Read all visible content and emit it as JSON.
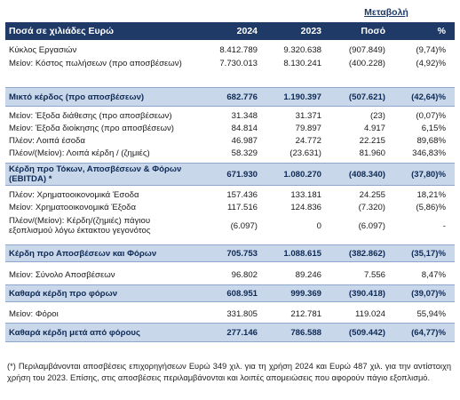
{
  "change_title": "Μεταβολή",
  "header": {
    "label": "Ποσά σε χιλιάδες Ευρώ",
    "y2024": "2024",
    "y2023": "2023",
    "amount": "Ποσό",
    "pct": "%"
  },
  "rows": [
    {
      "label": "Κύκλος Εργασιών",
      "v2024": "8.412.789",
      "v2023": "9.320.638",
      "amount": "(907.849)",
      "pct": "(9,74)%"
    },
    {
      "label": "Μείον: Κόστος πωλήσεων (προ αποσβέσεων)",
      "v2024": "7.730.013",
      "v2023": "8.130.241",
      "amount": "(400.228)",
      "pct": "(4,92)%"
    },
    {
      "label": "Μικτό κέρδος (προ αποσβέσεων)",
      "v2024": "682.776",
      "v2023": "1.190.397",
      "amount": "(507.621)",
      "pct": "(42,64)%"
    },
    {
      "label": "Μείον: Έξοδα διάθεσης (προ αποσβέσεων)",
      "v2024": "31.348",
      "v2023": "31.371",
      "amount": "(23)",
      "pct": "(0,07)%"
    },
    {
      "label": "Μείον: Έξοδα διοίκησης (προ αποσβέσεων)",
      "v2024": "84.814",
      "v2023": "79.897",
      "amount": "4.917",
      "pct": "6,15%"
    },
    {
      "label": "Πλέον: Λοιπά έσοδα",
      "v2024": "46.987",
      "v2023": "24.772",
      "amount": "22.215",
      "pct": "89,68%"
    },
    {
      "label": "Πλέον/(Μείον): Λοιπά κέρδη / (ζημιές)",
      "v2024": "58.329",
      "v2023": "(23.631)",
      "amount": "81.960",
      "pct": "346,83%"
    },
    {
      "label": "Κέρδη προ Τόκων, Αποσβέσεων & Φόρων (EBITDA) *",
      "v2024": "671.930",
      "v2023": "1.080.270",
      "amount": "(408.340)",
      "pct": "(37,80)%"
    },
    {
      "label": "Πλέον: Χρηματοοικονομικά Έσοδα",
      "v2024": "157.436",
      "v2023": "133.181",
      "amount": "24.255",
      "pct": "18,21%"
    },
    {
      "label": "Μείον: Χρηματοοικονομικά Έξοδα",
      "v2024": "117.516",
      "v2023": "124.836",
      "amount": "(7.320)",
      "pct": "(5,86)%"
    },
    {
      "label": "Πλέον/(Μείον): Κέρδη/(ζημιές) πάγιου εξοπλισμού λόγω έκτακτου γεγονότος",
      "v2024": "(6.097)",
      "v2023": "0",
      "amount": "(6.097)",
      "pct": "-"
    },
    {
      "label": "Κέρδη προ Αποσβέσεων και Φόρων",
      "v2024": "705.753",
      "v2023": "1.088.615",
      "amount": "(382.862)",
      "pct": "(35,17)%"
    },
    {
      "label": "Μείον: Σύνολο Αποσβέσεων",
      "v2024": "96.802",
      "v2023": "89.246",
      "amount": "7.556",
      "pct": "8,47%"
    },
    {
      "label": "Καθαρά κέρδη προ φόρων",
      "v2024": "608.951",
      "v2023": "999.369",
      "amount": "(390.418)",
      "pct": "(39,07)%"
    },
    {
      "label": "Μείον: Φόροι",
      "v2024": "331.805",
      "v2023": "212.781",
      "amount": "119.024",
      "pct": "55,94%"
    },
    {
      "label": "Καθαρά κέρδη μετά από φόρους",
      "v2024": "277.146",
      "v2023": "786.588",
      "amount": "(509.442)",
      "pct": "(64,77)%"
    }
  ],
  "footnote": "(*) Περιλαμβάνονται αποσβέσεις επιχορηγήσεων Ευρώ 349 χιλ. για τη χρήση 2024 και Ευρώ 487 χιλ. για την αντίστοιχη χρήση του 2023. Επίσης, στις αποσβέσεις περιλαμβάνονται και λοιπές απομειώσεις που αφορούν πάγιο εξοπλισμό."
}
